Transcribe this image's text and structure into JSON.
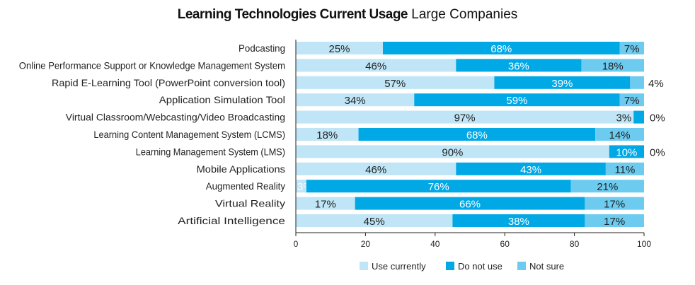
{
  "chart_data": {
    "type": "bar",
    "orientation": "horizontal",
    "stacked": true,
    "title": "Learning Technologies Current Usage",
    "subtitle": "Large Companies",
    "categories": [
      "Podcasting",
      "Online Performance Support or Knowledge Management System",
      "Rapid E-Learning Tool (PowerPoint conversion tool)",
      "Application Simulation Tool",
      "Virtual Classroom/Webcasting/Video Broadcasting",
      "Learning Content Management System (LCMS)",
      "Learning Management System (LMS)",
      "Mobile Applications",
      "Augmented Reality",
      "Virtual Reality",
      "Artificial Intelligence"
    ],
    "series": [
      {
        "name": "Use currently",
        "color": "#bfe5f6",
        "values": [
          25,
          46,
          57,
          34,
          97,
          18,
          90,
          46,
          3,
          17,
          45
        ]
      },
      {
        "name": "Do not use",
        "color": "#00a8e6",
        "values": [
          68,
          36,
          39,
          59,
          3,
          68,
          10,
          43,
          76,
          66,
          38
        ]
      },
      {
        "name": "Not sure",
        "color": "#6ccbef",
        "values": [
          7,
          18,
          4,
          7,
          0,
          14,
          0,
          11,
          21,
          17,
          17
        ]
      }
    ],
    "xlim": [
      0,
      100
    ],
    "xticks": [
      "0",
      "20",
      "40",
      "60",
      "80",
      "100"
    ],
    "value_suffix": "%",
    "grid": false,
    "legend": "bottom"
  }
}
